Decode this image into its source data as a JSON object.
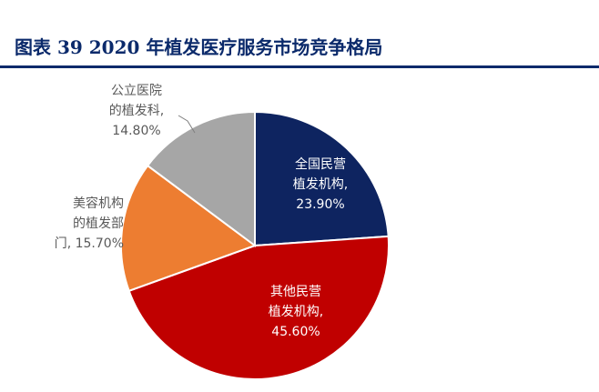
{
  "title": "图表 39  2020 年植发医疗服务市场竞争格局",
  "chart_data": {
    "type": "pie",
    "title": "图表 39  2020 年植发医疗服务市场竞争格局",
    "slices": [
      {
        "label": "全国民营\n植发机构,",
        "value": 23.9,
        "value_text": "23.90%",
        "color": "#0e2460"
      },
      {
        "label": "其他民营\n植发机构,",
        "value": 45.6,
        "value_text": "45.60%",
        "color": "#c00000"
      },
      {
        "label": "美容机构\n的植发部\n门,",
        "value": 15.7,
        "value_text": "15.70%",
        "color": "#ed7d31"
      },
      {
        "label": "公立医院\n的植发科,",
        "value": 14.8,
        "value_text": "14.80%",
        "color": "#a6a6a6"
      }
    ]
  }
}
